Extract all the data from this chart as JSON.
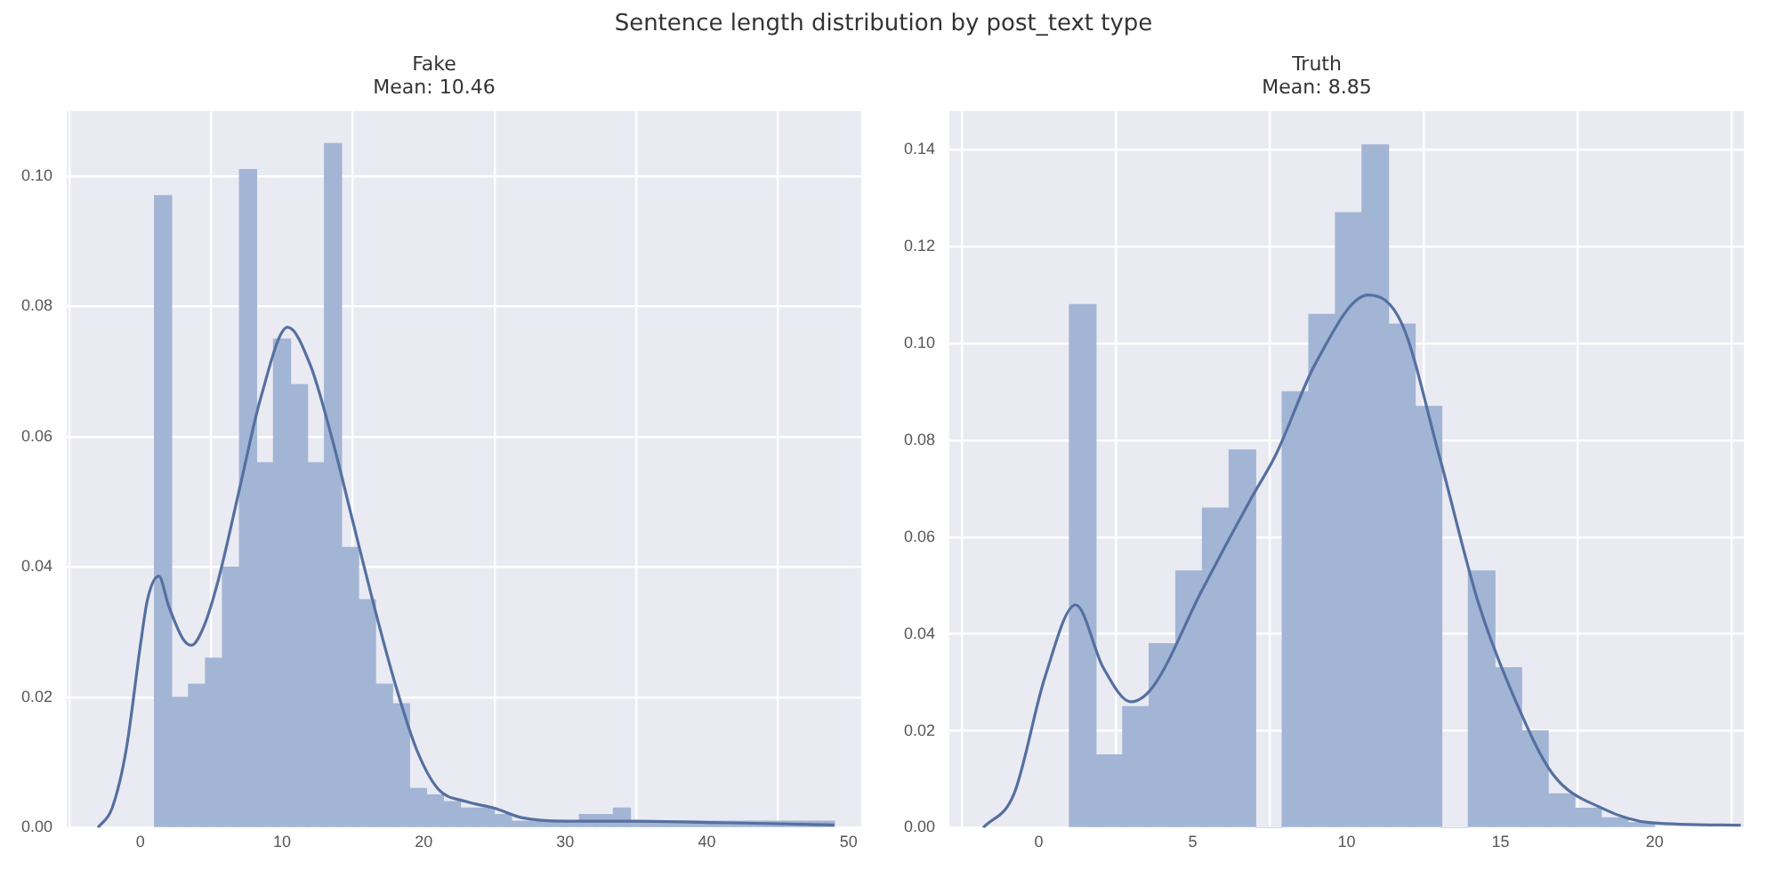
{
  "chart_data": [
    {
      "type": "histogram",
      "title": "Fake",
      "subtitle": "Mean: 10.46",
      "annotations": [
        "Sentence length distribution by post_text type"
      ],
      "grid": true,
      "xlim": [
        -5.2,
        50.9
      ],
      "xticks": [
        0,
        10,
        20,
        30,
        40,
        50
      ],
      "ylim": [
        0,
        0.11
      ],
      "yticks": [
        {
          "value": 0,
          "label": "0.00"
        },
        {
          "value": 0.02,
          "label": "0.02"
        },
        {
          "value": 0.04,
          "label": "0.04"
        },
        {
          "value": 0.06,
          "label": "0.06"
        },
        {
          "value": 0.08,
          "label": "0.08"
        },
        {
          "value": 0.1,
          "label": "0.10"
        }
      ],
      "series": [
        {
          "color": "#a3b5d5",
          "bins": [
            1,
            2.2,
            3.4,
            4.6,
            5.8,
            7,
            8.2,
            9.4,
            10.6,
            11.8,
            13,
            14.2,
            15.4,
            16.6,
            17.8,
            19,
            20.2,
            21.4,
            22.6,
            23.8,
            25,
            26.2,
            27.4,
            28.6,
            29.8,
            31,
            32.2,
            33.4,
            34.6,
            35.8,
            37,
            38.2,
            39.4,
            40.6,
            41.8,
            43,
            44.2,
            45.4,
            46.6,
            47.8,
            49
          ],
          "values": [
            0.097,
            0.02,
            0.022,
            0.026,
            0.04,
            0.101,
            0.056,
            0.075,
            0.068,
            0.056,
            0.105,
            0.043,
            0.035,
            0.022,
            0.019,
            0.006,
            0.005,
            0.004,
            0.003,
            0.003,
            0.002,
            0.001,
            0.001,
            0.001,
            0.001,
            0.002,
            0.002,
            0.003,
            0.001,
            0.001,
            0.001,
            0.001,
            0.001,
            0.001,
            0.001,
            0.001,
            0.001,
            0.001,
            0.001,
            0.001
          ]
        },
        {
          "type": "line",
          "color": "#5470a0",
          "x": [
            -3,
            -2,
            -1,
            0,
            0.5,
            1.3,
            2,
            3,
            3.6,
            4.5,
            5.5,
            7,
            8.5,
            10.4,
            12,
            13.5,
            15,
            16.5,
            18,
            19.5,
            21,
            23,
            25,
            27,
            30,
            35,
            40,
            45,
            49
          ],
          "values": [
            0,
            0.003,
            0.012,
            0.028,
            0.035,
            0.0386,
            0.034,
            0.029,
            0.028,
            0.031,
            0.038,
            0.052,
            0.066,
            0.0768,
            0.071,
            0.06,
            0.047,
            0.034,
            0.022,
            0.012,
            0.006,
            0.004,
            0.003,
            0.0015,
            0.001,
            0.001,
            0.0008,
            0.0006,
            0.0004
          ]
        }
      ]
    },
    {
      "type": "histogram",
      "title": "Truth",
      "subtitle": "Mean: 8.85",
      "grid": true,
      "xlim": [
        -2.9,
        22.9
      ],
      "xticks": [
        0,
        5,
        10,
        15,
        20
      ],
      "ylim": [
        0,
        0.148
      ],
      "yticks": [
        {
          "value": 0,
          "label": "0.00"
        },
        {
          "value": 0.02,
          "label": "0.02"
        },
        {
          "value": 0.04,
          "label": "0.04"
        },
        {
          "value": 0.06,
          "label": "0.06"
        },
        {
          "value": 0.08,
          "label": "0.08"
        },
        {
          "value": 0.1,
          "label": "0.10"
        },
        {
          "value": 0.12,
          "label": "0.12"
        },
        {
          "value": 0.14,
          "label": "0.14"
        }
      ],
      "series": [
        {
          "color": "#a3b5d5",
          "bins": [
            1,
            1.86,
            2.73,
            3.59,
            4.45,
            5.32,
            6.18,
            7.05,
            7.91,
            8.77,
            9.64,
            10.5,
            11.36,
            12.23,
            13.09,
            13.95,
            14.82,
            15.68,
            16.55,
            17.41,
            18.27,
            19.14,
            20
          ],
          "values": [
            0.108,
            0.015,
            0.025,
            0.038,
            0.053,
            0.066,
            0.078,
            0,
            0.09,
            0.106,
            0.127,
            0.141,
            0.104,
            0.087,
            0,
            0.053,
            0.033,
            0.02,
            0.007,
            0.004,
            0.002,
            0.001
          ]
        },
        {
          "type": "line",
          "color": "#5470a0",
          "x": [
            -1.8,
            -0.8,
            0.2,
            1.2,
            2.1,
            3,
            3.7,
            5.3,
            6.9,
            7.7,
            9,
            10.7,
            11.8,
            13,
            14.3,
            15.5,
            16.7,
            18.3,
            19.9,
            22.8
          ],
          "values": [
            0,
            0.007,
            0.031,
            0.046,
            0.033,
            0.026,
            0.029,
            0.049,
            0.068,
            0.077,
            0.096,
            0.11,
            0.104,
            0.077,
            0.046,
            0.026,
            0.011,
            0.004,
            0.001,
            0.0005
          ]
        }
      ]
    }
  ]
}
